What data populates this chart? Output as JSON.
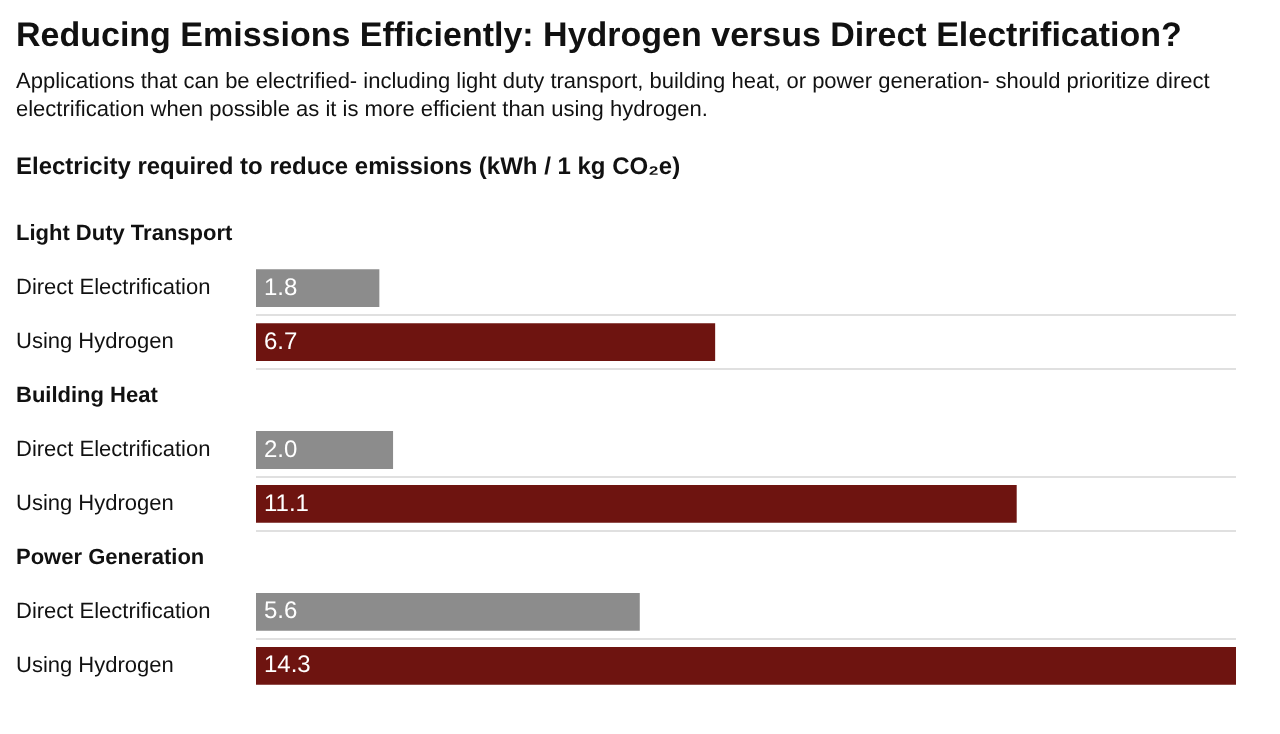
{
  "chart_data": {
    "type": "bar",
    "orientation": "horizontal",
    "title": "Reducing Emissions Efficiently: Hydrogen versus Direct Electrification?",
    "subtitle": "Applications that can be electrified- including light duty transport, building heat, or power generation- should prioritize direct electrification when possible as it is more efficient than using hydrogen.",
    "xlabel": "Electricity required to reduce emissions (kWh / 1 kg CO₂e)",
    "categories": [
      "Light Duty Transport",
      "Direct Electrification",
      "Using Hydrogen",
      "Building Heat",
      "Direct Electrification",
      "Using Hydrogen",
      "Power Generation",
      "Direct Electrification",
      "Using Hydrogen"
    ],
    "values": [
      null,
      1.8,
      6.7,
      null,
      2.0,
      11.1,
      null,
      5.6,
      14.3
    ],
    "colors": [
      null,
      "#8c8c8c",
      "#6e1410",
      null,
      "#8c8c8c",
      "#6e1410",
      null,
      "#8c8c8c",
      "#6e1410"
    ],
    "value_labels": [
      null,
      "1.8",
      "6.7",
      null,
      "2.0",
      "11.1",
      null,
      "5.6",
      "14.3"
    ],
    "xlim": [
      0,
      14.3
    ],
    "tick_labels": "y",
    "grid": "y",
    "legend": false
  }
}
